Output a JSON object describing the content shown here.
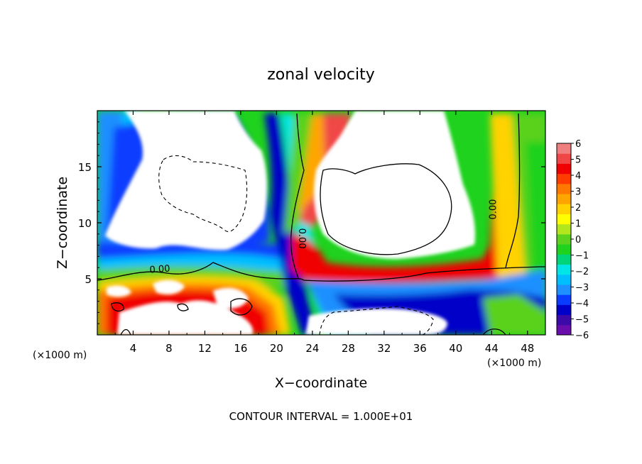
{
  "chart_data": {
    "type": "heatmap",
    "title": "zonal velocity",
    "xlabel": "X−coordinate",
    "ylabel": "Z−coordinate",
    "x_unit": "(×1000 m)",
    "y_unit": "(×1000 m)",
    "xlim": [
      0,
      50
    ],
    "ylim": [
      0,
      20
    ],
    "x_ticks": [
      4,
      8,
      12,
      16,
      20,
      24,
      28,
      32,
      36,
      40,
      44,
      48
    ],
    "x_tick_labels": [
      "4",
      "8",
      "12",
      "16",
      "20",
      "24",
      "28",
      "32",
      "36",
      "40",
      "44",
      "48"
    ],
    "y_ticks": [
      5,
      10,
      15
    ],
    "y_tick_labels": [
      "5",
      "10",
      "15"
    ],
    "colorbar": {
      "min": -6,
      "max": 6,
      "labels": [
        "6",
        "5",
        "4",
        "3",
        "2",
        "1",
        "0",
        "−1",
        "−2",
        "−3",
        "−4",
        "−5",
        "−6"
      ],
      "colors": [
        "#6a0dad",
        "#3b0aa8",
        "#0000c8",
        "#0a3cff",
        "#1e90ff",
        "#00bfff",
        "#00e5e5",
        "#00d47a",
        "#1ed21e",
        "#5ad21e",
        "#b4e61e",
        "#ffff00",
        "#ffd200",
        "#ffa500",
        "#ff7800",
        "#ff3c00",
        "#f00000",
        "#f04646",
        "#f08080"
      ]
    },
    "contour_labels": [
      {
        "text": "0.00",
        "x": 7,
        "z": 5.6,
        "rotate": -4
      },
      {
        "text": "0.00",
        "x": 22.5,
        "z": 8.6,
        "rotate": 90
      },
      {
        "text": "0.00",
        "x": 44.5,
        "z": 11.2,
        "rotate": -90
      }
    ],
    "contour_interval_text": "CONTOUR INTERVAL = 1.000E+01"
  }
}
